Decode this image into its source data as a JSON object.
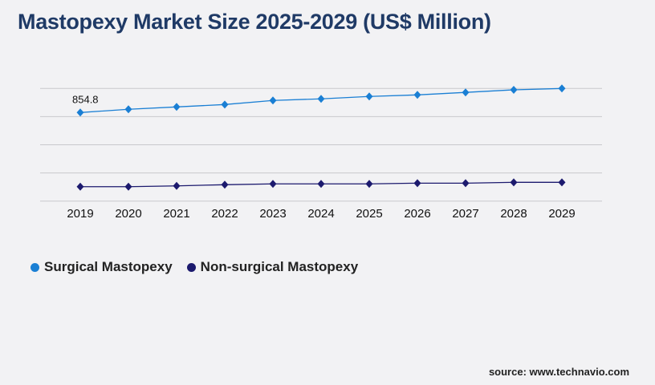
{
  "title": "Mastopexy Market Size 2025-2029 (US$ Million)",
  "source": "source: www.technavio.com",
  "chart_data": {
    "type": "line",
    "title": "Mastopexy Market Size 2025-2029 (US$ Million)",
    "categories": [
      "2019",
      "2020",
      "2021",
      "2022",
      "2023",
      "2024",
      "2025",
      "2026",
      "2027",
      "2028",
      "2029"
    ],
    "series": [
      {
        "name": "Surgical Mastopexy",
        "color": "#1a7fd4",
        "values": [
          854.8,
          886,
          909,
          932,
          971,
          987,
          1010,
          1025,
          1049,
          1074,
          1087
        ]
      },
      {
        "name": "Non-surgical Mastopexy",
        "color": "#1c1a6e",
        "values": [
          139,
          139,
          147,
          158,
          166,
          166,
          166,
          173,
          173,
          181,
          181
        ]
      }
    ],
    "data_labels": [
      {
        "series": 0,
        "index": 0,
        "text": "854.8"
      }
    ],
    "ylim": [
      0,
      1087
    ],
    "y_tick_labels_shown": false,
    "grid": true,
    "legend": "bottom-left",
    "xlabel": "",
    "ylabel": ""
  }
}
